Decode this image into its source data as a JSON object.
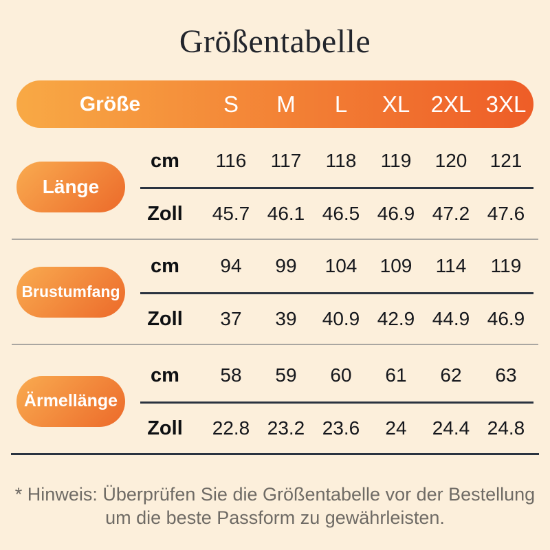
{
  "page": {
    "title": "Größentabelle",
    "note_line1": "* Hinweis: Überprüfen Sie die Größentabelle vor der Bestellung",
    "note_line2": "um die beste Passform zu gewährleisten."
  },
  "table": {
    "corner_label": "Größe",
    "sizes": [
      "S",
      "M",
      "L",
      "XL",
      "2XL",
      "3XL"
    ],
    "unit_cm_label": "cm",
    "unit_zoll_label": "Zoll",
    "rows": [
      {
        "label": "Länge",
        "cm": [
          "116",
          "117",
          "118",
          "119",
          "120",
          "121"
        ],
        "zoll": [
          "45.7",
          "46.1",
          "46.5",
          "46.9",
          "47.2",
          "47.6"
        ]
      },
      {
        "label": "Brustumfang",
        "cm": [
          "94",
          "99",
          "104",
          "109",
          "114",
          "119"
        ],
        "zoll": [
          "37",
          "39",
          "40.9",
          "42.9",
          "44.9",
          "46.9"
        ]
      },
      {
        "label": "Ärmellänge",
        "cm": [
          "58",
          "59",
          "60",
          "61",
          "62",
          "63"
        ],
        "zoll": [
          "22.8",
          "23.2",
          "23.6",
          "24",
          "24.4",
          "24.8"
        ]
      }
    ]
  },
  "colors": {
    "background": "#fcefdb",
    "header_gradient_start": "#f8a945",
    "header_gradient_end": "#ee5d27",
    "pill_gradient_start": "#f9ab50",
    "pill_gradient_end": "#ec6a2a",
    "dark_line": "#2a3340",
    "gray_line": "#8d8d8d",
    "title_text": "#22252c",
    "note_text": "#6f6b65"
  }
}
